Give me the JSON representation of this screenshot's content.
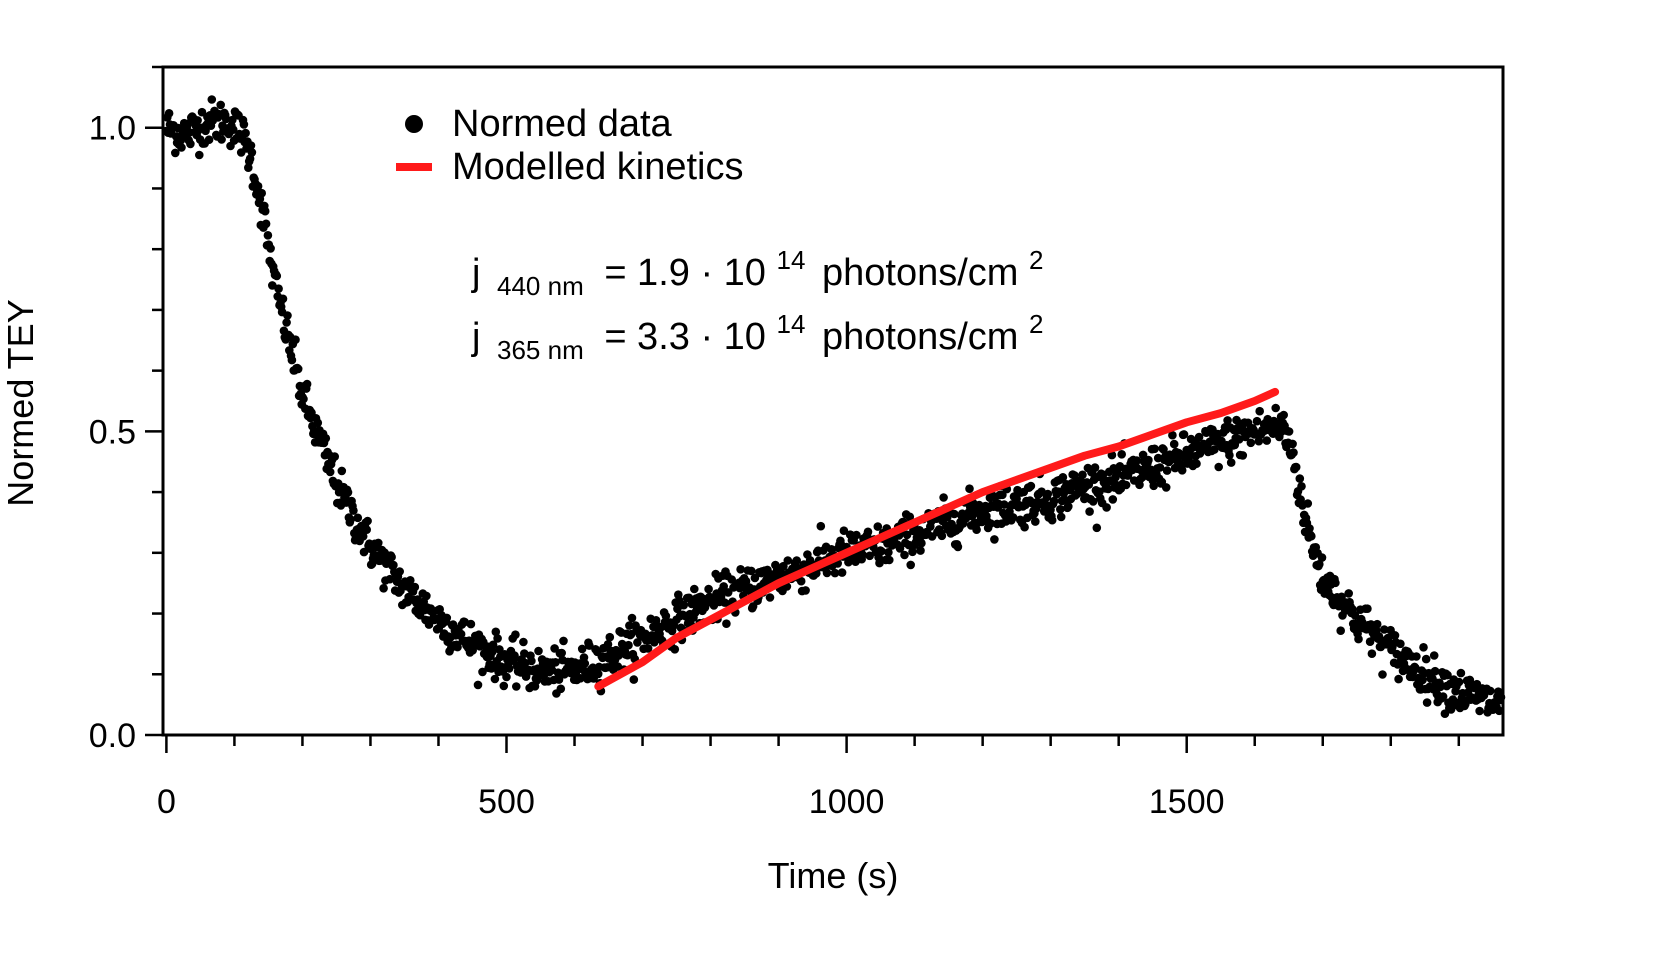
{
  "chart_data": {
    "type": "scatter",
    "xlabel": "Time (s)",
    "ylabel": "Normed TEY",
    "xlim": [
      -5,
      1965
    ],
    "ylim": [
      0,
      1.1
    ],
    "x_ticks": [
      {
        "value": 0,
        "label": "0"
      },
      {
        "value": 500,
        "label": "500"
      },
      {
        "value": 1000,
        "label": "1000"
      },
      {
        "value": 1500,
        "label": "1500"
      }
    ],
    "x_minor_step": 100,
    "y_ticks": [
      {
        "value": 0.0,
        "label": "0.0"
      },
      {
        "value": 0.5,
        "label": "0.5"
      },
      {
        "value": 1.0,
        "label": "1.0"
      }
    ],
    "y_minor_step": 0.1,
    "legend": {
      "placement": "top-left",
      "entries": [
        {
          "label": "Normed data",
          "marker": "dot",
          "color": "#000000"
        },
        {
          "label": "Modelled kinetics",
          "marker": "line",
          "color": "#ff1a1a"
        }
      ]
    },
    "annotations": [
      {
        "j": "j",
        "sub": "440 nm",
        "text": "= 1.9 · 10",
        "sup": "14",
        "unit": "photons/cm",
        "unit_sup": "2"
      },
      {
        "j": "j",
        "sub": "365 nm",
        "text": "= 3.3 · 10",
        "sup": "14",
        "unit": "photons/cm",
        "unit_sup": "2"
      }
    ],
    "series": [
      {
        "name": "Normed data",
        "kind": "scatter",
        "color": "#000000",
        "note_shape": "noisy dense points, ~1500 samples",
        "anchors": [
          [
            0,
            1.0
          ],
          [
            30,
            0.99
          ],
          [
            60,
            1.01
          ],
          [
            90,
            1.01
          ],
          [
            110,
            0.99
          ],
          [
            125,
            0.95
          ],
          [
            140,
            0.87
          ],
          [
            160,
            0.74
          ],
          [
            180,
            0.65
          ],
          [
            200,
            0.56
          ],
          [
            230,
            0.47
          ],
          [
            260,
            0.39
          ],
          [
            300,
            0.31
          ],
          [
            350,
            0.24
          ],
          [
            400,
            0.19
          ],
          [
            450,
            0.15
          ],
          [
            500,
            0.12
          ],
          [
            550,
            0.105
          ],
          [
            600,
            0.105
          ],
          [
            650,
            0.13
          ],
          [
            700,
            0.16
          ],
          [
            750,
            0.19
          ],
          [
            800,
            0.22
          ],
          [
            850,
            0.24
          ],
          [
            900,
            0.26
          ],
          [
            950,
            0.28
          ],
          [
            1000,
            0.3
          ],
          [
            1050,
            0.31
          ],
          [
            1100,
            0.33
          ],
          [
            1150,
            0.35
          ],
          [
            1200,
            0.37
          ],
          [
            1250,
            0.38
          ],
          [
            1300,
            0.39
          ],
          [
            1350,
            0.41
          ],
          [
            1400,
            0.42
          ],
          [
            1450,
            0.44
          ],
          [
            1500,
            0.46
          ],
          [
            1550,
            0.48
          ],
          [
            1600,
            0.5
          ],
          [
            1640,
            0.51
          ],
          [
            1655,
            0.47
          ],
          [
            1670,
            0.38
          ],
          [
            1685,
            0.31
          ],
          [
            1700,
            0.26
          ],
          [
            1750,
            0.19
          ],
          [
            1800,
            0.14
          ],
          [
            1850,
            0.1
          ],
          [
            1900,
            0.07
          ],
          [
            1960,
            0.05
          ]
        ]
      },
      {
        "name": "Modelled kinetics",
        "kind": "line",
        "color": "#ff1a1a",
        "points": [
          [
            635,
            0.08
          ],
          [
            700,
            0.12
          ],
          [
            750,
            0.16
          ],
          [
            800,
            0.19
          ],
          [
            850,
            0.22
          ],
          [
            900,
            0.25
          ],
          [
            950,
            0.275
          ],
          [
            1000,
            0.3
          ],
          [
            1050,
            0.325
          ],
          [
            1100,
            0.35
          ],
          [
            1150,
            0.375
          ],
          [
            1200,
            0.4
          ],
          [
            1250,
            0.42
          ],
          [
            1300,
            0.44
          ],
          [
            1350,
            0.46
          ],
          [
            1400,
            0.475
          ],
          [
            1450,
            0.495
          ],
          [
            1500,
            0.515
          ],
          [
            1550,
            0.53
          ],
          [
            1600,
            0.55
          ],
          [
            1630,
            0.565
          ]
        ]
      }
    ]
  }
}
